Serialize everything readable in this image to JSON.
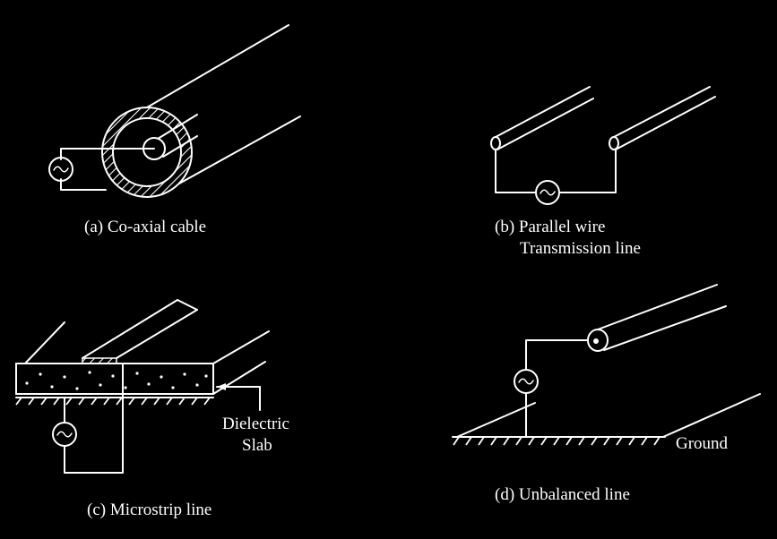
{
  "colors": {
    "background": "#000000",
    "stroke": "#ffffff"
  },
  "figures": {
    "coax": {
      "caption": "(a) Co-axial cable"
    },
    "parallel": {
      "caption_line1": "(b) Parallel wire",
      "caption_line2": "Transmission line"
    },
    "microstrip": {
      "caption": "(c) Microstrip line",
      "label_line1": "Dielectric",
      "label_line2": "Slab"
    },
    "unbalanced": {
      "caption": "(d) Unbalanced line",
      "label": "Ground"
    }
  },
  "icons": {
    "source": "ac-source-icon"
  }
}
